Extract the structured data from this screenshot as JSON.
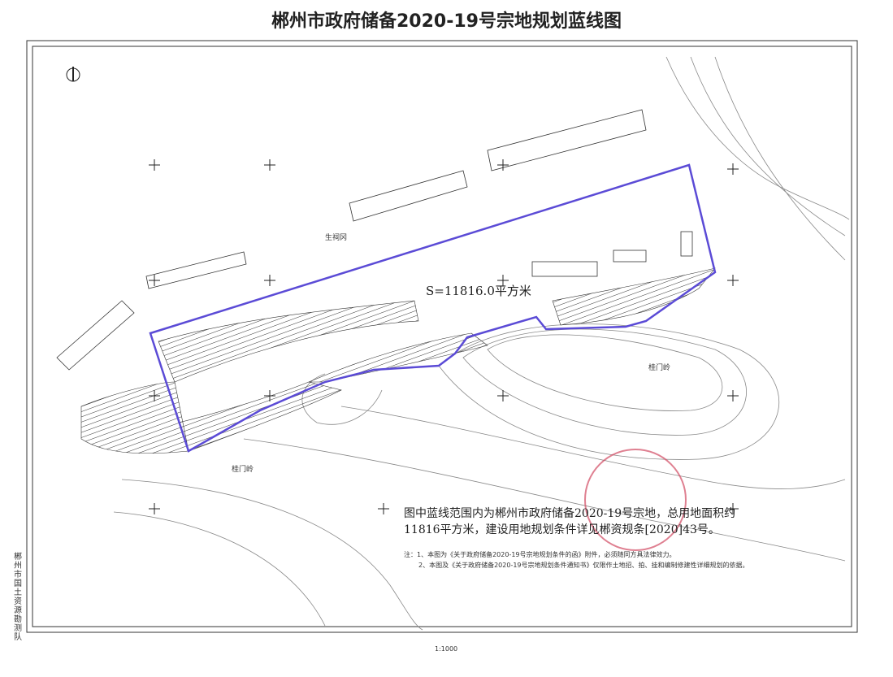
{
  "header": {
    "title": "郴州市政府储备2020-19号宗地规划蓝线图"
  },
  "map": {
    "area_label": "S=11816.0平方米",
    "place_labels": [
      "生祠冈",
      "桂门岭",
      "桂门岭"
    ]
  },
  "notice": {
    "text": "图中蓝线范围内为郴州市政府储备2020-19号宗地，总用地面积约11816平方米，建设用地规划条件详见郴资规条[2020]43号。"
  },
  "notes": [
    "注：1、本图为《关于政府储备2020-19号宗地规划条件的函》附件，必须随同方具法律效力。",
    "2、本图及《关于政府储备2020-19号宗地规划条件通知书》仅限作土地招、拍、挂和编制修建性详细规划的依据。"
  ],
  "footer": {
    "scale": "1:1000",
    "side_label": "郴州市国土资源勘测队"
  }
}
